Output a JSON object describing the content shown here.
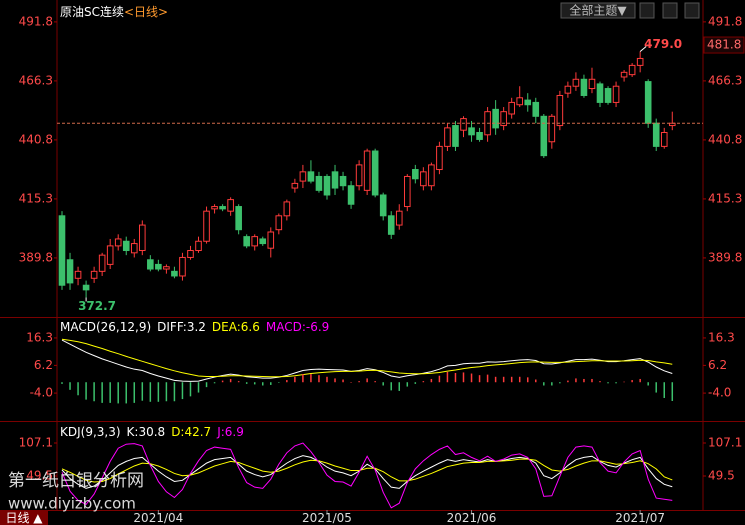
{
  "header": {
    "title": "原油SC连续",
    "period": "<日线>",
    "button": "全部主题▼",
    "period_tab": "日线 ▲"
  },
  "watermark": {
    "name": "第一纸白银分析网",
    "url": "www.diyizby.com"
  },
  "chart_data": [
    {
      "type": "candlestick",
      "categories": [
        null,
        null,
        null,
        null,
        null,
        null,
        null,
        null,
        null,
        null,
        null,
        null,
        "2021/04",
        null,
        null,
        null,
        null,
        null,
        null,
        null,
        null,
        null,
        null,
        null,
        null,
        null,
        null,
        null,
        null,
        null,
        null,
        null,
        null,
        "2021/05",
        null,
        null,
        null,
        null,
        null,
        null,
        null,
        null,
        null,
        null,
        null,
        null,
        null,
        null,
        null,
        null,
        null,
        "2021/06",
        null,
        null,
        null,
        null,
        null,
        null,
        null,
        null,
        null,
        null,
        null,
        null,
        null,
        null,
        null,
        null,
        null,
        null,
        null,
        null,
        "2021/07",
        null,
        null,
        null,
        null
      ],
      "open": [
        408,
        389,
        381,
        378,
        381,
        384,
        387,
        395,
        397,
        392,
        393,
        389,
        387,
        385,
        384,
        382,
        390,
        393,
        397,
        411,
        412,
        410,
        412,
        399,
        395,
        398,
        394,
        402,
        408,
        420,
        423,
        427,
        425,
        425,
        427,
        425,
        421,
        421,
        419,
        436,
        417,
        408,
        404,
        412,
        428,
        421,
        421,
        428,
        438,
        447,
        445,
        446,
        444,
        443,
        454,
        447,
        452,
        456,
        458,
        457,
        451,
        440,
        447,
        461,
        464,
        467,
        463,
        465,
        463,
        457,
        468,
        469,
        473,
        466,
        448,
        438,
        447
      ],
      "high": [
        410,
        392,
        386,
        380,
        386,
        392,
        398,
        400,
        399,
        398,
        406,
        391,
        389,
        387,
        386,
        392,
        395,
        399,
        412,
        413,
        413,
        416,
        413,
        400,
        400,
        399,
        403,
        409,
        415,
        424,
        430,
        432,
        427,
        426,
        430,
        427,
        423,
        432,
        437,
        437,
        418,
        410,
        413,
        426,
        430,
        429,
        431,
        440,
        448,
        449,
        451,
        449,
        446,
        455,
        458,
        455,
        459,
        464,
        461,
        459,
        452,
        452,
        462,
        466,
        470,
        469,
        472,
        466,
        464,
        466,
        471,
        474,
        479,
        467,
        450,
        446,
        453
      ],
      "low": [
        376,
        376,
        378,
        372.7,
        379,
        382,
        385,
        393,
        391,
        390,
        391,
        384,
        384,
        383,
        381,
        380,
        389,
        392,
        396,
        409,
        410,
        408,
        400,
        394,
        393,
        395,
        390,
        400,
        406,
        418,
        420,
        422,
        418,
        415,
        417,
        419,
        411,
        419,
        417,
        416,
        406,
        398,
        402,
        410,
        422,
        419,
        419,
        426,
        436,
        436,
        442,
        440,
        440,
        440,
        443,
        445,
        450,
        455,
        453,
        448,
        433,
        437,
        445,
        459,
        462,
        459,
        461,
        455,
        456,
        455,
        466,
        468,
        470,
        446,
        436,
        437,
        445
      ],
      "close": [
        378,
        379,
        384,
        376,
        384,
        391,
        395,
        398,
        393,
        396,
        404,
        385,
        385,
        386,
        382,
        390,
        393,
        397,
        410,
        412,
        411,
        415,
        402,
        395,
        399,
        396,
        401,
        408,
        414,
        422,
        427,
        423,
        419,
        417,
        420,
        421,
        413,
        430,
        436,
        417,
        408,
        400,
        410,
        425,
        424,
        427,
        430,
        438,
        446,
        438,
        450,
        443,
        441,
        453,
        446,
        453,
        457,
        459,
        456,
        451,
        434,
        451,
        460,
        464,
        467,
        460,
        467,
        457,
        457,
        464,
        470,
        473,
        476,
        448,
        438,
        444,
        448
      ],
      "up_color": "#ff3b3b",
      "down_color": "#3cc06c",
      "ylim": [
        364.7,
        499.1
      ],
      "yticks": [
        389.8,
        415.3,
        440.8,
        466.3,
        491.8
      ],
      "max_label": {
        "value": 479.0,
        "label": "479.0"
      },
      "min_label": {
        "value": 372.7,
        "label": "372.7"
      },
      "price_marker": 481.8
    },
    {
      "type": "macd",
      "title": "MACD(26,12,9)",
      "up_color": "#ff3b3b",
      "down_color": "#3cc06c",
      "ylim": [
        -13.9,
        22.9
      ],
      "yticks": [
        {
          "value": -4,
          "label": "-4.0"
        },
        6.2,
        16.3
      ],
      "series": [
        {
          "name": "DIFF:3.2",
          "color": "#ffffff",
          "values": [
            15.5,
            14.0,
            12.5,
            11.0,
            9.8,
            8.6,
            7.6,
            6.6,
            5.6,
            4.8,
            4.3,
            3.2,
            2.3,
            1.5,
            0.7,
            0.4,
            0.3,
            0.4,
            1.2,
            1.9,
            2.5,
            3.0,
            2.6,
            2.0,
            1.8,
            1.5,
            1.5,
            1.9,
            2.5,
            3.4,
            4.3,
            4.7,
            4.8,
            4.7,
            4.6,
            4.5,
            4.0,
            4.3,
            5.0,
            4.6,
            3.6,
            2.3,
            1.8,
            2.4,
            2.8,
            3.3,
            3.9,
            4.8,
            6.0,
            6.2,
            6.8,
            7.0,
            7.0,
            7.5,
            7.4,
            7.6,
            7.9,
            8.2,
            8.3,
            8.0,
            6.8,
            6.7,
            7.1,
            7.7,
            8.3,
            8.3,
            8.5,
            8.1,
            7.6,
            7.6,
            7.9,
            8.3,
            8.7,
            7.4,
            5.6,
            4.2,
            3.2
          ]
        },
        {
          "name": "DEA:6.6",
          "color": "#ffff00",
          "values": [
            15.8,
            15.4,
            14.9,
            14.2,
            13.3,
            12.4,
            11.4,
            10.5,
            9.5,
            8.6,
            7.7,
            6.8,
            5.9,
            5.0,
            4.2,
            3.5,
            2.9,
            2.3,
            2.1,
            2.1,
            2.2,
            2.4,
            2.4,
            2.3,
            2.2,
            2.1,
            2.0,
            2.0,
            2.1,
            2.4,
            2.8,
            3.2,
            3.5,
            3.7,
            3.9,
            4.0,
            4.0,
            4.1,
            4.3,
            4.4,
            4.2,
            3.8,
            3.4,
            3.2,
            3.1,
            3.1,
            3.3,
            3.6,
            4.1,
            4.5,
            5.0,
            5.4,
            5.7,
            6.1,
            6.4,
            6.6,
            6.9,
            7.2,
            7.4,
            7.5,
            7.4,
            7.3,
            7.3,
            7.4,
            7.6,
            7.7,
            7.9,
            7.9,
            7.8,
            7.8,
            7.8,
            7.9,
            8.1,
            8.0,
            7.5,
            7.1,
            6.6
          ]
        },
        {
          "name": "MACD:-6.9",
          "color": "#ff00ff",
          "style": "histogram",
          "values": [
            -0.6,
            -2.8,
            -4.8,
            -6.4,
            -7.0,
            -7.6,
            -7.6,
            -7.8,
            -7.8,
            -7.6,
            -6.8,
            -7.2,
            -7.2,
            -7.0,
            -7.0,
            -6.2,
            -5.2,
            -3.8,
            -1.8,
            -0.4,
            0.6,
            1.2,
            0.4,
            -0.6,
            -0.8,
            -1.2,
            -1.0,
            -0.2,
            0.8,
            2.0,
            3.0,
            3.0,
            2.6,
            2.0,
            1.4,
            1.0,
            0.0,
            0.4,
            1.4,
            0.4,
            -1.2,
            -3.0,
            -3.2,
            -1.6,
            -0.6,
            0.4,
            1.2,
            2.4,
            3.8,
            3.4,
            3.6,
            3.2,
            2.6,
            2.8,
            2.0,
            2.0,
            2.0,
            2.0,
            1.8,
            1.0,
            -1.2,
            -1.2,
            -0.4,
            0.6,
            1.4,
            1.2,
            1.2,
            0.4,
            -0.4,
            -0.4,
            0.2,
            0.8,
            1.2,
            -1.2,
            -3.8,
            -5.8,
            -6.9
          ]
        }
      ]
    },
    {
      "type": "line",
      "title": "KDJ(9,3,3)",
      "ylim": [
        -13.3,
        138.5
      ],
      "yticks": [
        49.5,
        107.1
      ],
      "series": [
        {
          "name": "K:30.8",
          "color": "#ffffff",
          "values": [
            60,
            45,
            35,
            28,
            32,
            42,
            55,
            68,
            75,
            80,
            82,
            70,
            58,
            48,
            40,
            42,
            52,
            62,
            72,
            78,
            80,
            82,
            70,
            58,
            52,
            48,
            52,
            62,
            72,
            80,
            85,
            82,
            75,
            65,
            58,
            55,
            50,
            58,
            70,
            62,
            45,
            30,
            28,
            40,
            50,
            58,
            65,
            72,
            78,
            75,
            78,
            76,
            74,
            78,
            75,
            77,
            80,
            82,
            80,
            72,
            50,
            45,
            55,
            68,
            78,
            82,
            84,
            75,
            68,
            65,
            72,
            78,
            82,
            62,
            45,
            35,
            30.8
          ]
        },
        {
          "name": "D:42.7",
          "color": "#ffff00",
          "values": [
            62,
            56,
            49,
            42,
            39,
            40,
            45,
            53,
            60,
            67,
            72,
            71,
            67,
            61,
            54,
            50,
            51,
            55,
            61,
            67,
            71,
            75,
            73,
            68,
            63,
            58,
            56,
            58,
            63,
            69,
            74,
            77,
            76,
            72,
            67,
            63,
            59,
            59,
            63,
            63,
            57,
            48,
            41,
            41,
            44,
            49,
            54,
            60,
            66,
            69,
            72,
            73,
            73,
            75,
            75,
            76,
            77,
            79,
            79,
            77,
            68,
            60,
            58,
            61,
            67,
            72,
            76,
            76,
            73,
            70,
            71,
            73,
            76,
            71,
            62,
            48,
            42.7
          ]
        },
        {
          "name": "J:6.9",
          "color": "#ff00ff",
          "values": [
            56,
            23,
            7,
            0,
            18,
            46,
            75,
            98,
            105,
            106,
            102,
            68,
            40,
            22,
            12,
            26,
            54,
            76,
            94,
            100,
            98,
            96,
            64,
            38,
            30,
            28,
            44,
            70,
            90,
            102,
            107,
            92,
            73,
            51,
            40,
            39,
            32,
            56,
            84,
            60,
            21,
            -6,
            2,
            38,
            62,
            76,
            87,
            96,
            102,
            87,
            90,
            82,
            76,
            84,
            75,
            79,
            86,
            88,
            82,
            62,
            14,
            15,
            49,
            82,
            100,
            102,
            100,
            73,
            58,
            55,
            74,
            88,
            94,
            44,
            11,
            9,
            6.9
          ]
        }
      ]
    }
  ]
}
